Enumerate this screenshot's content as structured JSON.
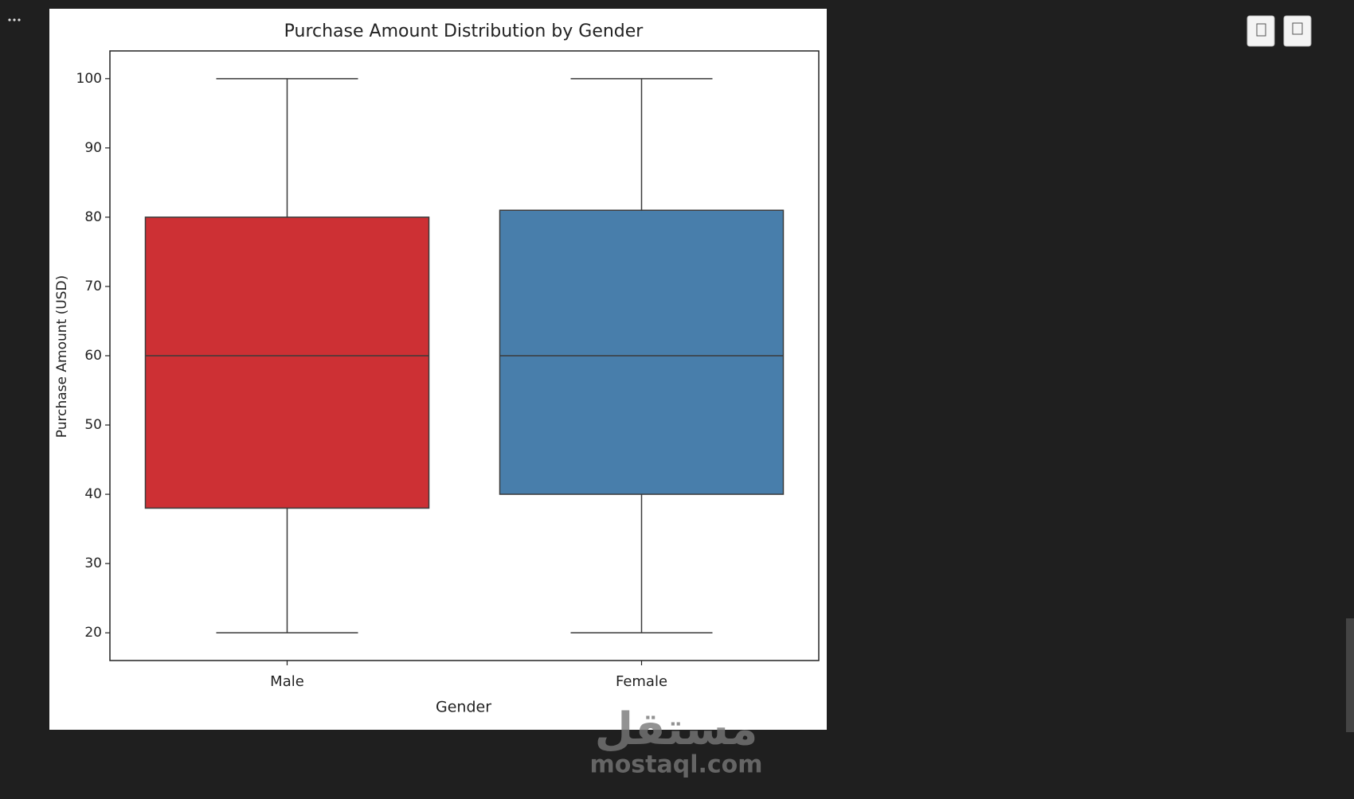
{
  "chart_data": {
    "type": "box",
    "title": "Purchase Amount Distribution by Gender",
    "x_label": "Gender",
    "y_label": "Purchase Amount (USD)",
    "categories": [
      "Male",
      "Female"
    ],
    "colors": [
      "#cd3034",
      "#487eab"
    ],
    "whislo": [
      20,
      20
    ],
    "q1": [
      38,
      40
    ],
    "median": [
      60,
      60
    ],
    "q3": [
      80,
      81
    ],
    "whishi": [
      100,
      100
    ],
    "ylim": [
      16,
      104
    ],
    "yticks": [
      20,
      30,
      40,
      50,
      60,
      70,
      80,
      90,
      100
    ]
  },
  "watermark": {
    "arabic": "مستقل",
    "site": "mostaql.com"
  }
}
